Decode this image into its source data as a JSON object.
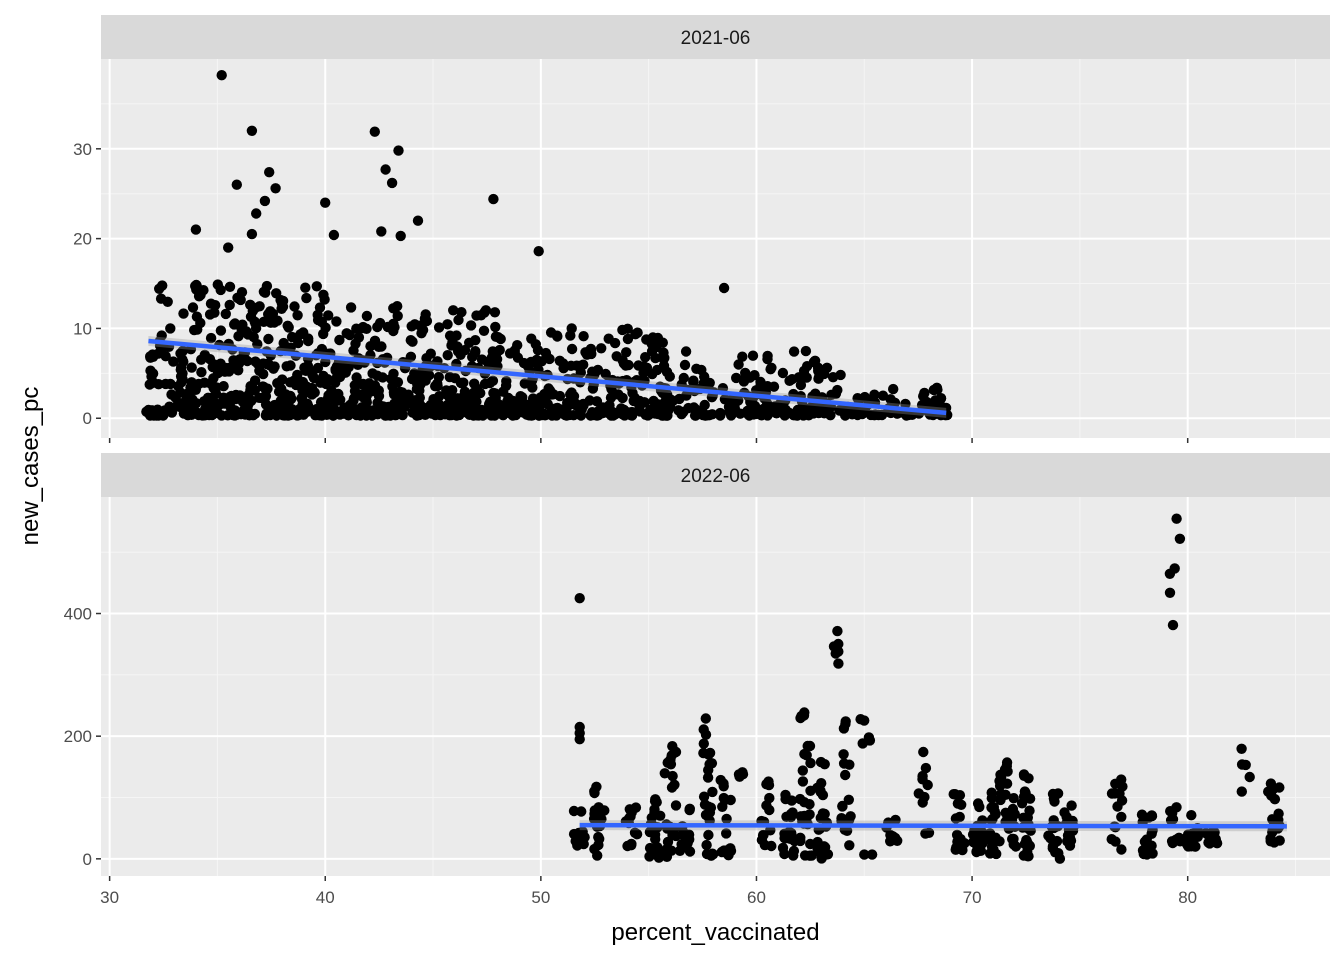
{
  "chart_data": [
    {
      "type": "scatter",
      "facet": "2021-06",
      "xlabel": "percent_vaccinated",
      "ylabel": "new_cases_pc",
      "xlim": [
        29.6,
        86.6
      ],
      "ylim": [
        -2.2,
        40.0
      ],
      "xticks": [
        30,
        40,
        50,
        60,
        70,
        80
      ],
      "yticks": [
        0,
        10,
        20,
        30
      ],
      "grid": true,
      "trend": {
        "x": [
          31.8,
          68.8
        ],
        "y": [
          8.6,
          0.6
        ],
        "color": "#3366ff"
      },
      "outliers": [
        {
          "x": 35.2,
          "y": 38.2
        },
        {
          "x": 36.6,
          "y": 32.0
        },
        {
          "x": 42.3,
          "y": 31.9
        },
        {
          "x": 43.4,
          "y": 29.8
        },
        {
          "x": 42.8,
          "y": 27.7
        },
        {
          "x": 37.4,
          "y": 27.4
        },
        {
          "x": 43.1,
          "y": 26.2
        },
        {
          "x": 35.9,
          "y": 26.0
        },
        {
          "x": 37.7,
          "y": 25.6
        },
        {
          "x": 47.8,
          "y": 24.4
        },
        {
          "x": 37.2,
          "y": 24.2
        },
        {
          "x": 40.0,
          "y": 24.0
        },
        {
          "x": 36.8,
          "y": 22.8
        },
        {
          "x": 44.3,
          "y": 22.0
        },
        {
          "x": 34.0,
          "y": 21.0
        },
        {
          "x": 42.6,
          "y": 20.8
        },
        {
          "x": 36.6,
          "y": 20.5
        },
        {
          "x": 40.4,
          "y": 20.4
        },
        {
          "x": 43.5,
          "y": 20.3
        },
        {
          "x": 35.5,
          "y": 19.0
        },
        {
          "x": 49.9,
          "y": 18.6
        },
        {
          "x": 58.5,
          "y": 14.5
        }
      ],
      "clusters": [
        {
          "x0": 31.7,
          "x1": 40.0,
          "ymin": 0.3,
          "ymax": 15.0,
          "n": 380,
          "seed": 11
        },
        {
          "x0": 40.0,
          "x1": 48.0,
          "ymin": 0.3,
          "ymax": 12.5,
          "n": 360,
          "seed": 12
        },
        {
          "x0": 48.0,
          "x1": 56.0,
          "ymin": 0.3,
          "ymax": 10.0,
          "n": 280,
          "seed": 13
        },
        {
          "x0": 56.0,
          "x1": 64.0,
          "ymin": 0.3,
          "ymax": 7.5,
          "n": 170,
          "seed": 14
        },
        {
          "x0": 64.0,
          "x1": 68.9,
          "ymin": 0.3,
          "ymax": 3.5,
          "n": 70,
          "seed": 15
        }
      ]
    },
    {
      "type": "scatter",
      "facet": "2022-06",
      "xlabel": "percent_vaccinated",
      "ylabel": "new_cases_pc",
      "xlim": [
        29.6,
        86.6
      ],
      "ylim": [
        -28,
        590
      ],
      "xticks": [
        30,
        40,
        50,
        60,
        70,
        80
      ],
      "yticks": [
        0,
        200,
        400
      ],
      "grid": true,
      "trend": {
        "x": [
          51.8,
          84.6
        ],
        "y": [
          55,
          53
        ],
        "color": "#3366ff"
      },
      "columns": [
        {
          "x": 51.8,
          "ymin": 20,
          "ymax": 95,
          "n": 14,
          "extra": [
            425,
            215,
            205,
            195
          ]
        },
        {
          "x": 52.7,
          "ymin": 5,
          "ymax": 120,
          "n": 18
        },
        {
          "x": 54.2,
          "ymin": 20,
          "ymax": 95,
          "n": 12
        },
        {
          "x": 55.3,
          "ymin": 0,
          "ymax": 105,
          "n": 20
        },
        {
          "x": 56.0,
          "ymin": 0,
          "ymax": 185,
          "n": 22
        },
        {
          "x": 56.7,
          "ymin": 5,
          "ymax": 90,
          "n": 14
        },
        {
          "x": 57.8,
          "ymin": 5,
          "ymax": 235,
          "n": 26
        },
        {
          "x": 58.6,
          "ymin": 5,
          "ymax": 135,
          "n": 16
        },
        {
          "x": 59.3,
          "ymin": 130,
          "ymax": 155,
          "n": 4
        },
        {
          "x": 60.5,
          "ymin": 20,
          "ymax": 130,
          "n": 14
        },
        {
          "x": 61.5,
          "ymin": 5,
          "ymax": 110,
          "n": 20
        },
        {
          "x": 62.3,
          "ymin": 5,
          "ymax": 250,
          "n": 28
        },
        {
          "x": 63.1,
          "ymin": 0,
          "ymax": 165,
          "n": 22
        },
        {
          "x": 63.7,
          "ymin": 270,
          "ymax": 425,
          "n": 6
        },
        {
          "x": 64.2,
          "ymin": 20,
          "ymax": 225,
          "n": 18
        },
        {
          "x": 65.1,
          "ymin": 180,
          "ymax": 235,
          "n": 5
        },
        {
          "x": 65.1,
          "ymin": 5,
          "ymax": 10,
          "n": 2
        },
        {
          "x": 66.3,
          "ymin": 25,
          "ymax": 80,
          "n": 8
        },
        {
          "x": 67.8,
          "ymin": 40,
          "ymax": 175,
          "n": 10
        },
        {
          "x": 69.4,
          "ymin": 10,
          "ymax": 110,
          "n": 16
        },
        {
          "x": 70.3,
          "ymin": 10,
          "ymax": 95,
          "n": 18
        },
        {
          "x": 71.1,
          "ymin": 5,
          "ymax": 140,
          "n": 22
        },
        {
          "x": 71.8,
          "ymin": 20,
          "ymax": 165,
          "n": 20
        },
        {
          "x": 72.5,
          "ymin": 0,
          "ymax": 145,
          "n": 24
        },
        {
          "x": 73.8,
          "ymin": 0,
          "ymax": 110,
          "n": 18
        },
        {
          "x": 74.5,
          "ymin": 20,
          "ymax": 90,
          "n": 14
        },
        {
          "x": 76.7,
          "ymin": 10,
          "ymax": 130,
          "n": 14
        },
        {
          "x": 78.1,
          "ymin": 0,
          "ymax": 75,
          "n": 16
        },
        {
          "x": 79.4,
          "ymin": 370,
          "ymax": 570,
          "n": 6
        },
        {
          "x": 79.4,
          "ymin": 20,
          "ymax": 85,
          "n": 10
        },
        {
          "x": 80.2,
          "ymin": 20,
          "ymax": 75,
          "n": 16
        },
        {
          "x": 81.1,
          "ymin": 25,
          "ymax": 50,
          "n": 10
        },
        {
          "x": 82.6,
          "ymin": 100,
          "ymax": 195,
          "n": 5
        },
        {
          "x": 84.0,
          "ymin": 25,
          "ymax": 125,
          "n": 18
        }
      ]
    }
  ]
}
